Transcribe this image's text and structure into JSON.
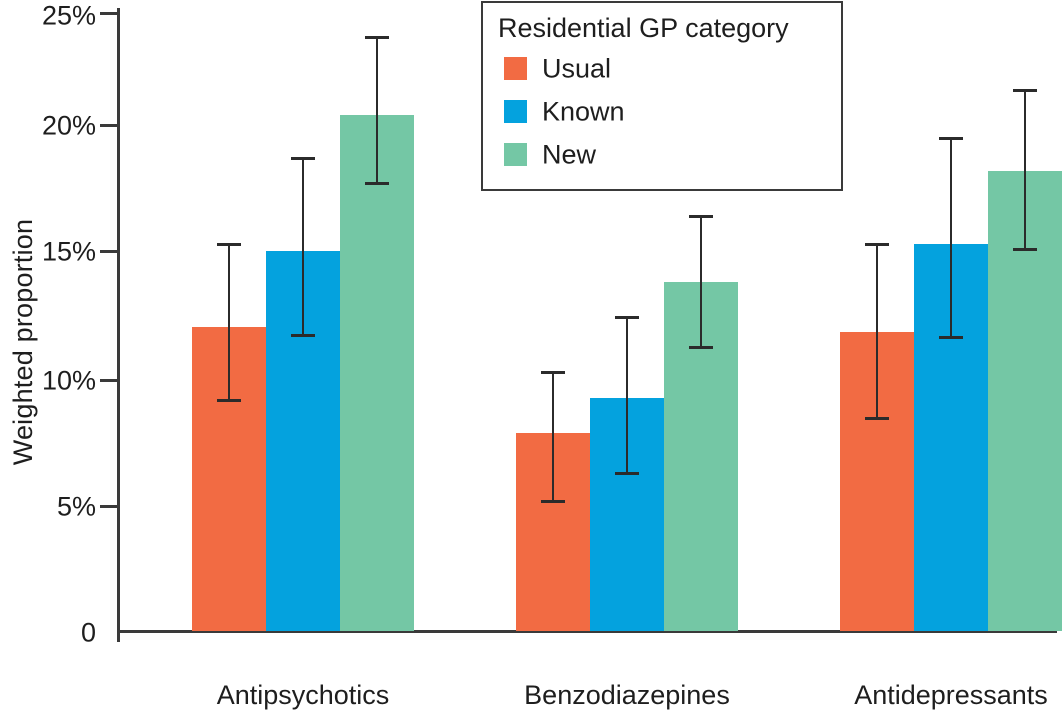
{
  "chart_data": {
    "type": "bar",
    "title": "",
    "ylabel": "Weighted proportion",
    "xlabel": "",
    "ylim": [
      0,
      25
    ],
    "grid": false,
    "yticks": [
      {
        "value": 25,
        "label": "25%"
      },
      {
        "value": 20,
        "label": "20%"
      },
      {
        "value": 15,
        "label": "15%"
      },
      {
        "value": 10,
        "label": "10%"
      },
      {
        "value": 5,
        "label": "5%"
      },
      {
        "value": 0,
        "label": "0"
      }
    ],
    "categories": [
      "Antipsychotics",
      "Benzodiazepines",
      "Antidepressants"
    ],
    "series": [
      {
        "name": "Usual",
        "color": "#F26B43",
        "values": [
          12.1,
          7.9,
          11.9
        ],
        "ci_low": [
          9.2,
          5.2,
          8.5
        ],
        "ci_high": [
          15.4,
          10.3,
          15.4
        ]
      },
      {
        "name": "Known",
        "color": "#04A2DE",
        "values": [
          15.1,
          9.3,
          15.4
        ],
        "ci_low": [
          11.8,
          6.3,
          11.7
        ],
        "ci_high": [
          18.8,
          12.5,
          19.6
        ]
      },
      {
        "name": "New",
        "color": "#74C7A5",
        "values": [
          20.5,
          13.9,
          18.3
        ],
        "ci_low": [
          17.8,
          11.3,
          15.2
        ],
        "ci_high": [
          23.6,
          16.5,
          21.5
        ]
      }
    ],
    "legend": {
      "title": "Residential GP category",
      "position": "top"
    },
    "error_bars": true,
    "colors": {
      "axis": "#3a3a3a",
      "error_bar": "#2b2b2b",
      "text": "#1e1e1e",
      "background": "#ffffff"
    }
  }
}
